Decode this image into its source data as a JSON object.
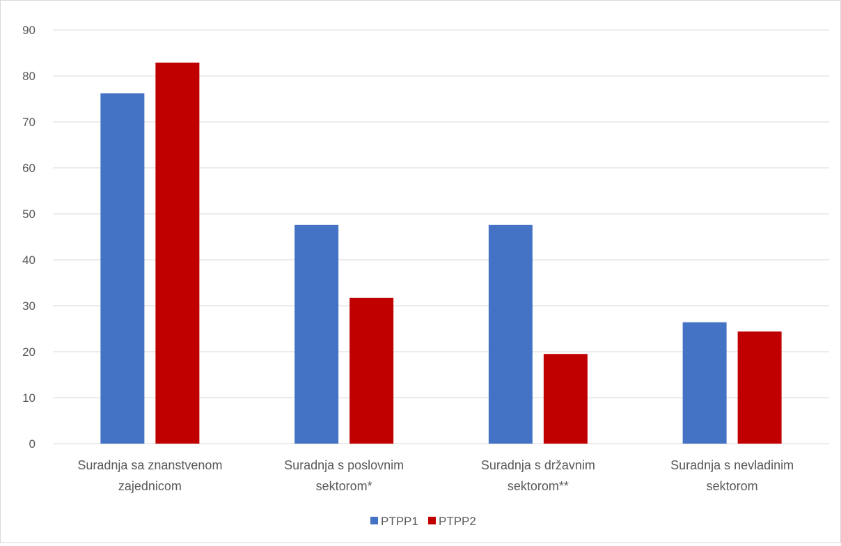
{
  "chart_data": {
    "type": "bar",
    "categories": [
      [
        "Suradnja sa znanstvenom",
        "zajednicom"
      ],
      [
        "Suradnja s poslovnim",
        "sektorom*"
      ],
      [
        "Suradnja s državnim",
        "sektorom**"
      ],
      [
        "Suradnja s nevladinim",
        "sektorom"
      ]
    ],
    "series": [
      {
        "name": "PTPP1",
        "color": "#4472c4",
        "values": [
          76.2,
          47.6,
          47.6,
          26.4
        ]
      },
      {
        "name": "PTPP2",
        "color": "#c00000",
        "values": [
          82.9,
          31.7,
          19.5,
          24.4
        ]
      }
    ],
    "ylim": [
      0,
      90
    ],
    "yticks": [
      0,
      10,
      20,
      30,
      40,
      50,
      60,
      70,
      80,
      90
    ],
    "grid": true,
    "legend": "bottom",
    "title": "",
    "xlabel": "",
    "ylabel": ""
  }
}
